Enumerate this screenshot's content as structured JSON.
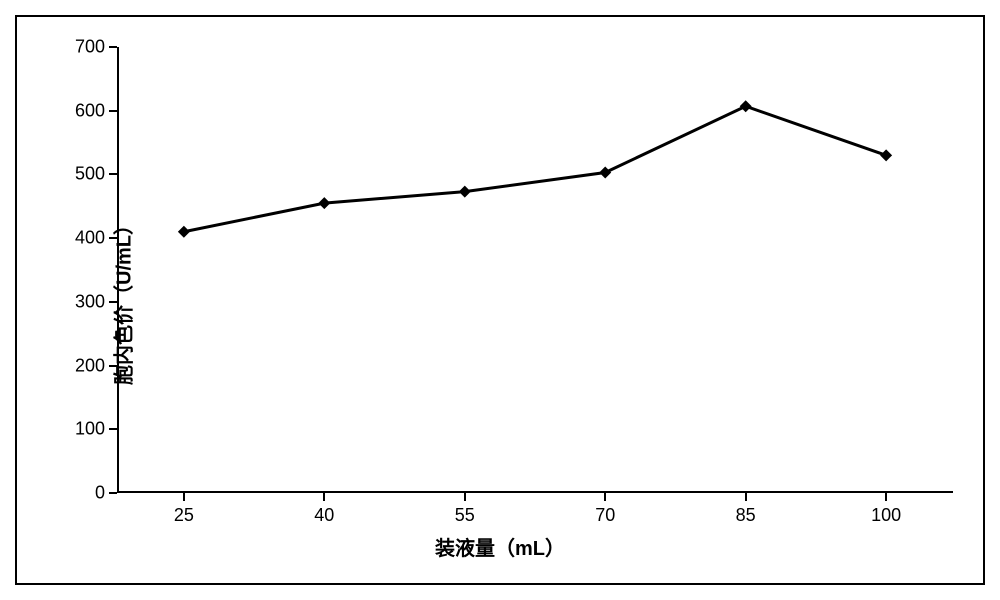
{
  "chart": {
    "type": "line",
    "x_values": [
      25,
      40,
      55,
      70,
      85,
      100
    ],
    "y_values": [
      410,
      455,
      473,
      503,
      607,
      530
    ],
    "x_axis_title": "装液量（mL）",
    "y_axis_title": "胞内色价（U/mL）",
    "y_min": 0,
    "y_max": 700,
    "y_tick_step": 100,
    "y_ticks": [
      0,
      100,
      200,
      300,
      400,
      500,
      600,
      700
    ],
    "x_ticks": [
      25,
      40,
      55,
      70,
      85,
      100
    ],
    "line_color": "#000000",
    "line_width": 3,
    "marker_style": "diamond",
    "marker_size": 12,
    "marker_color": "#000000",
    "border_color": "#000000",
    "background_color": "#ffffff",
    "axis_color": "#000000",
    "label_fontsize": 18,
    "title_fontsize": 20,
    "title_fontweight": "bold"
  }
}
